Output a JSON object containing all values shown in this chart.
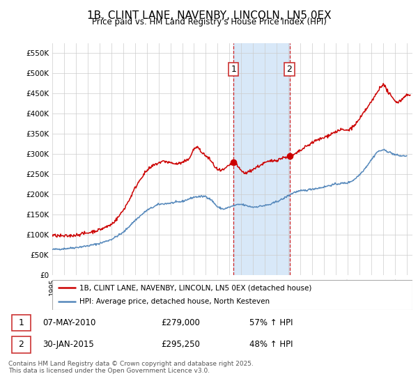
{
  "title": "1B, CLINT LANE, NAVENBY, LINCOLN, LN5 0EX",
  "subtitle": "Price paid vs. HM Land Registry's House Price Index (HPI)",
  "ylim": [
    0,
    575000
  ],
  "xlim_start": 1995.0,
  "xlim_end": 2025.5,
  "sale1_date": 2010.35,
  "sale1_price": 279000,
  "sale2_date": 2015.08,
  "sale2_price": 295250,
  "legend_line1": "1B, CLINT LANE, NAVENBY, LINCOLN, LN5 0EX (detached house)",
  "legend_line2": "HPI: Average price, detached house, North Kesteven",
  "footer": "Contains HM Land Registry data © Crown copyright and database right 2025.\nThis data is licensed under the Open Government Licence v3.0.",
  "red_color": "#cc0000",
  "blue_color": "#5588bb",
  "bg_color": "#ffffff",
  "grid_color": "#cccccc",
  "shade_color": "#d8e8f8",
  "hpi_points": [
    [
      1995.0,
      63000
    ],
    [
      1996.0,
      65000
    ],
    [
      1997.0,
      68000
    ],
    [
      1998.0,
      72000
    ],
    [
      1999.0,
      78000
    ],
    [
      2000.0,
      88000
    ],
    [
      2001.0,
      105000
    ],
    [
      2002.0,
      135000
    ],
    [
      2003.0,
      160000
    ],
    [
      2004.0,
      175000
    ],
    [
      2005.0,
      178000
    ],
    [
      2006.0,
      182000
    ],
    [
      2007.0,
      193000
    ],
    [
      2008.0,
      195000
    ],
    [
      2008.5,
      185000
    ],
    [
      2009.0,
      168000
    ],
    [
      2009.5,
      163000
    ],
    [
      2010.0,
      168000
    ],
    [
      2010.5,
      173000
    ],
    [
      2011.0,
      175000
    ],
    [
      2011.5,
      171000
    ],
    [
      2012.0,
      168000
    ],
    [
      2012.5,
      170000
    ],
    [
      2013.0,
      172000
    ],
    [
      2013.5,
      175000
    ],
    [
      2014.0,
      182000
    ],
    [
      2014.5,
      188000
    ],
    [
      2015.0,
      197000
    ],
    [
      2015.5,
      205000
    ],
    [
      2016.0,
      208000
    ],
    [
      2016.5,
      210000
    ],
    [
      2017.0,
      213000
    ],
    [
      2017.5,
      215000
    ],
    [
      2018.0,
      218000
    ],
    [
      2018.5,
      222000
    ],
    [
      2019.0,
      225000
    ],
    [
      2019.5,
      227000
    ],
    [
      2020.0,
      228000
    ],
    [
      2020.5,
      235000
    ],
    [
      2021.0,
      248000
    ],
    [
      2021.5,
      265000
    ],
    [
      2022.0,
      285000
    ],
    [
      2022.5,
      305000
    ],
    [
      2023.0,
      310000
    ],
    [
      2023.5,
      305000
    ],
    [
      2024.0,
      298000
    ],
    [
      2024.5,
      295000
    ],
    [
      2025.0,
      295000
    ]
  ],
  "red_points": [
    [
      1995.0,
      98000
    ],
    [
      1995.5,
      97000
    ],
    [
      1996.0,
      96000
    ],
    [
      1996.5,
      97000
    ],
    [
      1997.0,
      99000
    ],
    [
      1997.5,
      102000
    ],
    [
      1998.0,
      104000
    ],
    [
      1998.5,
      108000
    ],
    [
      1999.0,
      112000
    ],
    [
      1999.5,
      118000
    ],
    [
      2000.0,
      125000
    ],
    [
      2000.5,
      140000
    ],
    [
      2001.0,
      160000
    ],
    [
      2001.5,
      185000
    ],
    [
      2002.0,
      215000
    ],
    [
      2002.5,
      240000
    ],
    [
      2003.0,
      258000
    ],
    [
      2003.5,
      270000
    ],
    [
      2004.0,
      278000
    ],
    [
      2004.5,
      282000
    ],
    [
      2005.0,
      278000
    ],
    [
      2005.5,
      275000
    ],
    [
      2006.0,
      278000
    ],
    [
      2006.5,
      285000
    ],
    [
      2007.0,
      312000
    ],
    [
      2007.3,
      318000
    ],
    [
      2007.5,
      308000
    ],
    [
      2007.8,
      300000
    ],
    [
      2008.0,
      295000
    ],
    [
      2008.3,
      288000
    ],
    [
      2008.6,
      275000
    ],
    [
      2009.0,
      260000
    ],
    [
      2009.3,
      258000
    ],
    [
      2009.6,
      262000
    ],
    [
      2010.0,
      272000
    ],
    [
      2010.35,
      279000
    ],
    [
      2010.6,
      272000
    ],
    [
      2011.0,
      258000
    ],
    [
      2011.3,
      252000
    ],
    [
      2011.6,
      255000
    ],
    [
      2012.0,
      262000
    ],
    [
      2012.5,
      270000
    ],
    [
      2013.0,
      278000
    ],
    [
      2013.5,
      282000
    ],
    [
      2014.0,
      285000
    ],
    [
      2014.5,
      290000
    ],
    [
      2015.08,
      295250
    ],
    [
      2015.5,
      298000
    ],
    [
      2016.0,
      308000
    ],
    [
      2016.5,
      318000
    ],
    [
      2017.0,
      328000
    ],
    [
      2017.5,
      335000
    ],
    [
      2018.0,
      340000
    ],
    [
      2018.5,
      348000
    ],
    [
      2019.0,
      355000
    ],
    [
      2019.5,
      360000
    ],
    [
      2020.0,
      358000
    ],
    [
      2020.5,
      368000
    ],
    [
      2021.0,
      385000
    ],
    [
      2021.5,
      408000
    ],
    [
      2022.0,
      428000
    ],
    [
      2022.5,
      452000
    ],
    [
      2022.8,
      468000
    ],
    [
      2023.0,
      472000
    ],
    [
      2023.2,
      465000
    ],
    [
      2023.5,
      450000
    ],
    [
      2023.8,
      438000
    ],
    [
      2024.0,
      432000
    ],
    [
      2024.3,
      428000
    ],
    [
      2024.6,
      435000
    ],
    [
      2025.0,
      448000
    ],
    [
      2025.3,
      443000
    ]
  ]
}
